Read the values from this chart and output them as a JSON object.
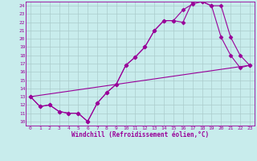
{
  "xlabel": "Windchill (Refroidissement éolien,°C)",
  "bg_color": "#c8ecec",
  "line_color": "#990099",
  "grid_color": "#aacccc",
  "xlim": [
    -0.5,
    23.5
  ],
  "ylim": [
    9.5,
    24.5
  ],
  "xticks": [
    0,
    1,
    2,
    3,
    4,
    5,
    6,
    7,
    8,
    9,
    10,
    11,
    12,
    13,
    14,
    15,
    16,
    17,
    18,
    19,
    20,
    21,
    22,
    23
  ],
  "yticks": [
    10,
    11,
    12,
    13,
    14,
    15,
    16,
    17,
    18,
    19,
    20,
    21,
    22,
    23,
    24
  ],
  "line1_x": [
    0,
    1,
    2,
    3,
    4,
    5,
    6,
    7,
    8,
    9,
    10,
    11,
    12,
    13,
    14,
    15,
    16,
    17,
    18,
    19,
    20,
    21,
    22,
    23
  ],
  "line1_y": [
    13.0,
    11.8,
    12.0,
    11.2,
    11.0,
    11.0,
    10.0,
    12.2,
    13.5,
    14.5,
    16.8,
    17.8,
    19.0,
    21.0,
    22.2,
    22.2,
    22.0,
    24.5,
    24.5,
    24.0,
    20.2,
    18.0,
    16.5,
    16.8
  ],
  "line2_x": [
    0,
    1,
    2,
    3,
    4,
    5,
    6,
    7,
    8,
    9,
    10,
    11,
    12,
    13,
    14,
    15,
    16,
    17,
    18,
    19,
    20,
    21,
    22,
    23
  ],
  "line2_y": [
    13.0,
    11.8,
    12.0,
    11.2,
    11.0,
    11.0,
    10.0,
    12.2,
    13.5,
    14.5,
    16.8,
    17.8,
    19.0,
    21.0,
    22.2,
    22.2,
    23.5,
    24.2,
    24.5,
    24.0,
    24.0,
    20.2,
    18.0,
    16.8
  ],
  "line3_x": [
    0,
    1,
    23
  ],
  "line3_y": [
    13.0,
    11.8,
    16.8
  ],
  "marker": "D",
  "markersize": 2.5,
  "linewidth": 0.8
}
